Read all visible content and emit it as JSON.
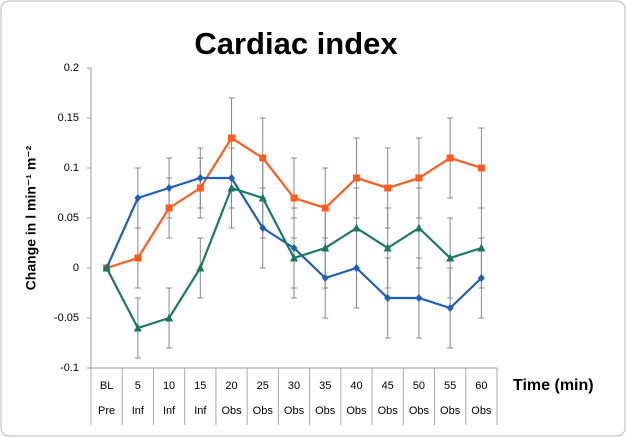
{
  "chart_data": {
    "type": "line",
    "title": "Cardiac index",
    "y_label": "Change in l min⁻¹ m⁻²",
    "x_label": "Time (min)",
    "categories": [
      "BL",
      "5",
      "10",
      "15",
      "20",
      "25",
      "30",
      "35",
      "40",
      "45",
      "50",
      "55",
      "60"
    ],
    "phases": [
      "Pre",
      "Inf",
      "Inf",
      "Inf",
      "Obs",
      "Obs",
      "Obs",
      "Obs",
      "Obs",
      "Obs",
      "Obs",
      "Obs",
      "Obs"
    ],
    "ylim": [
      -0.1,
      0.2
    ],
    "yticks": [
      -0.1,
      -0.05,
      0,
      0.05,
      0.1,
      0.15,
      0.2
    ],
    "grid": false,
    "series": [
      {
        "color": "#ff5b1f",
        "marker": "square",
        "values": [
          0,
          0.01,
          0.06,
          0.08,
          0.13,
          0.11,
          0.07,
          0.06,
          0.09,
          0.08,
          0.09,
          0.11,
          0.1
        ],
        "errors": [
          0,
          0.03,
          0.03,
          0.03,
          0.04,
          0.04,
          0.04,
          0.04,
          0.04,
          0.04,
          0.04,
          0.04,
          0.04
        ]
      },
      {
        "color": "#1f5fb4",
        "marker": "diamond",
        "values": [
          0,
          0.07,
          0.08,
          0.09,
          0.09,
          0.04,
          0.02,
          -0.01,
          0,
          -0.03,
          -0.03,
          -0.04,
          -0.01
        ],
        "errors": [
          0,
          0.03,
          0.03,
          0.03,
          0.03,
          0.04,
          0.04,
          0.04,
          0.04,
          0.04,
          0.04,
          0.04,
          0.04
        ]
      },
      {
        "color": "#1b7a5c",
        "marker": "triangle",
        "values": [
          0,
          -0.06,
          -0.05,
          0,
          0.08,
          0.07,
          0.01,
          0.02,
          0.04,
          0.02,
          0.04,
          0.01,
          0.02
        ],
        "errors": [
          0,
          0.03,
          0.03,
          0.03,
          0.04,
          0.04,
          0.04,
          0.04,
          0.04,
          0.04,
          0.04,
          0.04,
          0.04
        ]
      }
    ]
  }
}
